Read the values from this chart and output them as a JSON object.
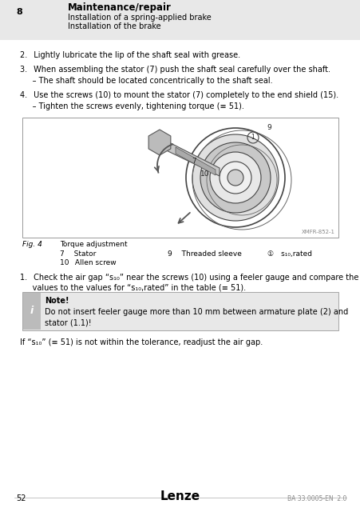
{
  "white_color": "#ffffff",
  "black_color": "#000000",
  "gray_color": "#888888",
  "header_bg": "#e8e8e8",
  "note_bg": "#e8e8e8",
  "note_icon_bg": "#cccccc",
  "chapter_num": "8",
  "chapter_title": "Maintenance/repair",
  "subheading1": "Installation of a spring-applied brake",
  "subheading2": "Installation of the brake",
  "step2": "2.  Lightly lubricate the lip of the shaft seal with grease.",
  "step3": "3.  When assembling the stator (7) push the shaft seal carefully over the shaft.",
  "step3b": "     – The shaft should be located concentrically to the shaft seal.",
  "step4": "4.  Use the screws (10) to mount the stator (7) completely to the end shield (15).",
  "step4b": "     – Tighten the screws evenly, tightening torque (≡ 51).",
  "fig_label": "Fig. 4",
  "fig_title": "Torque adjustment",
  "fig_item_7": "7   Stator",
  "fig_item_10": "10  Allen screw",
  "fig_item_9": "9   Threaded sleeve",
  "fig_item_circ": "①  s₁₀,rated",
  "step1_line1": "1.  Check the air gap “s₁₀” near the screws (10) using a feeler gauge and compare the",
  "step1_line2": "     values to the values for “s₁₀,rated” in the table (≡ 51).",
  "note_title": "Note!",
  "note_line1": "Do not insert feeler gauge more than 10 mm between armature plate (2) and",
  "note_line2": "stator (1.1)!",
  "final_text": "If “s₁₀” (≡ 51) is not within the tolerance, readjust the air gap.",
  "page_num": "52",
  "footer_brand": "Lenze",
  "footer_doc": "BA 33.0005-EN  2.0",
  "img_code": "XMFR-852-1"
}
